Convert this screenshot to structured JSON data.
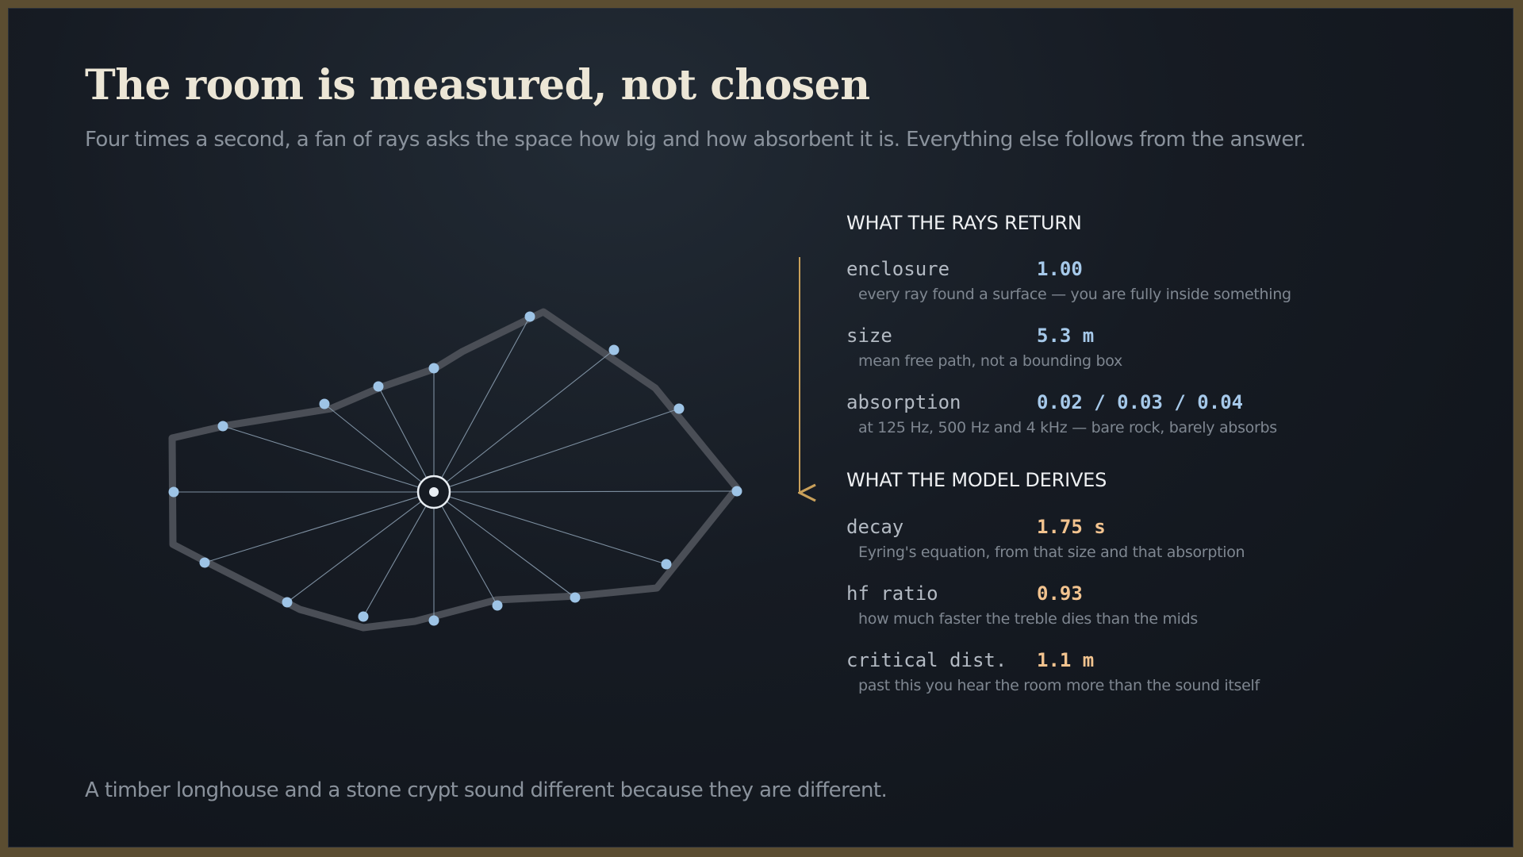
{
  "title": "The room is measured, not chosen",
  "subtitle": "Four times a second, a fan of rays asks the space how big and how absorbent it is. Everything else follows from the answer.",
  "footer": "A timber longhouse and a stone crypt sound different because they are different.",
  "colors": {
    "frame": "#5b4d31",
    "background": "#161b23",
    "room_outline": "#4a4e56",
    "ray": "#8fa3b6",
    "hit_point": "#9ec4e6",
    "arrow": "#c9a05a",
    "measured_value": "#a6c9ea",
    "derived_value": "#f2c38f"
  },
  "returns": {
    "heading": "WHAT THE RAYS RETURN",
    "rows": [
      {
        "key": "enclosure",
        "value": "1.00",
        "note": "every ray found a surface — you are fully inside something"
      },
      {
        "key": "size",
        "value": "5.3 m",
        "note": "mean free path, not a bounding box"
      },
      {
        "key": "absorption",
        "value": "0.02 / 0.03 / 0.04",
        "note": "at 125 Hz, 500 Hz and 4 kHz — bare rock, barely absorbs"
      }
    ]
  },
  "derives": {
    "heading": "WHAT THE MODEL DERIVES",
    "rows": [
      {
        "key": "decay",
        "value": "1.75 s",
        "note": "Eyring's equation, from that size and that absorption"
      },
      {
        "key": "hf ratio",
        "value": "0.93",
        "note": "how much faster the treble dies than the mids"
      },
      {
        "key": "critical dist.",
        "value": "1.1 m",
        "note": "past this you hear the room more than the sound itself"
      }
    ]
  }
}
